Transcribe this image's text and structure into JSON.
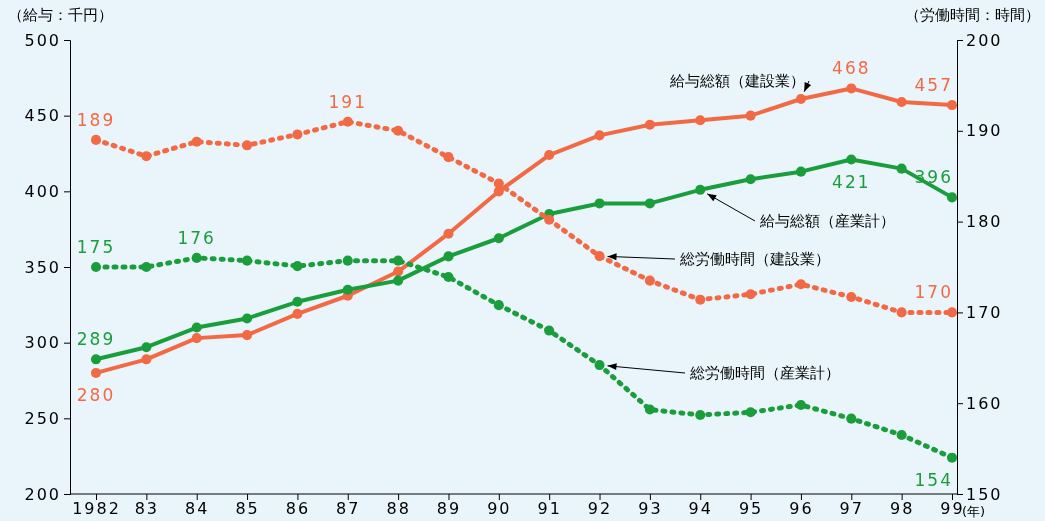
{
  "chart_data": {
    "type": "line",
    "categories": [
      "1982",
      "83",
      "84",
      "85",
      "86",
      "87",
      "88",
      "89",
      "90",
      "91",
      "92",
      "93",
      "94",
      "95",
      "96",
      "97",
      "98",
      "99"
    ],
    "xlabel": "(年)",
    "ylabel": "（給与：千円）",
    "y2label": "（労働時間：時間）",
    "ylim": [
      200,
      500
    ],
    "yticks": [
      200,
      250,
      300,
      350,
      400,
      450,
      500
    ],
    "y2lim": [
      150,
      200
    ],
    "y2ticks": [
      150,
      160,
      170,
      180,
      190,
      200
    ],
    "legend": false,
    "grid": false,
    "marker": "circle",
    "series": [
      {
        "name": "給与総額（建設業）",
        "color": "#f26a45",
        "line_style": "solid",
        "values": [
          280,
          289,
          303,
          305,
          319,
          331,
          347,
          372,
          400,
          424,
          437,
          444,
          447,
          450,
          461,
          468,
          459,
          457
        ],
        "value_labels": [
          "280",
          null,
          null,
          null,
          null,
          null,
          null,
          null,
          null,
          null,
          null,
          null,
          null,
          null,
          null,
          "468",
          null,
          "457"
        ]
      },
      {
        "name": "給与総額（産業計）",
        "color": "#1a9e3c",
        "line_style": "solid",
        "values": [
          289,
          297,
          310,
          316,
          327,
          335,
          341,
          357,
          369,
          385,
          392,
          392,
          401,
          408,
          413,
          421,
          415,
          396
        ],
        "value_labels": [
          "289",
          null,
          null,
          null,
          null,
          null,
          null,
          null,
          null,
          null,
          null,
          null,
          null,
          null,
          null,
          "421",
          null,
          "396"
        ]
      },
      {
        "name": "総労働時間（建設業）",
        "color": "#f26a45",
        "line_style": "dotted",
        "axis": "y2",
        "values": [
          189,
          187.2,
          188.8,
          188.4,
          189.6,
          191,
          190,
          187.1,
          184.2,
          180.2,
          176.2,
          173.5,
          171.4,
          172,
          173.1,
          171.7,
          170,
          170
        ],
        "value_labels": [
          "189",
          null,
          null,
          null,
          null,
          "191",
          null,
          null,
          null,
          null,
          null,
          null,
          null,
          null,
          null,
          null,
          null,
          "170"
        ]
      },
      {
        "name": "総労働時間（産業計）",
        "color": "#1a9e3c",
        "line_style": "dotted",
        "axis": "y2",
        "values": [
          175,
          175,
          176,
          175.7,
          175.1,
          175.7,
          175.7,
          173.9,
          170.8,
          168,
          164.2,
          159.3,
          158.7,
          159,
          159.8,
          158.3,
          156.5,
          154
        ],
        "value_labels": [
          "175",
          null,
          "176",
          null,
          null,
          null,
          null,
          null,
          null,
          null,
          null,
          null,
          null,
          null,
          null,
          null,
          null,
          "154"
        ]
      }
    ]
  }
}
